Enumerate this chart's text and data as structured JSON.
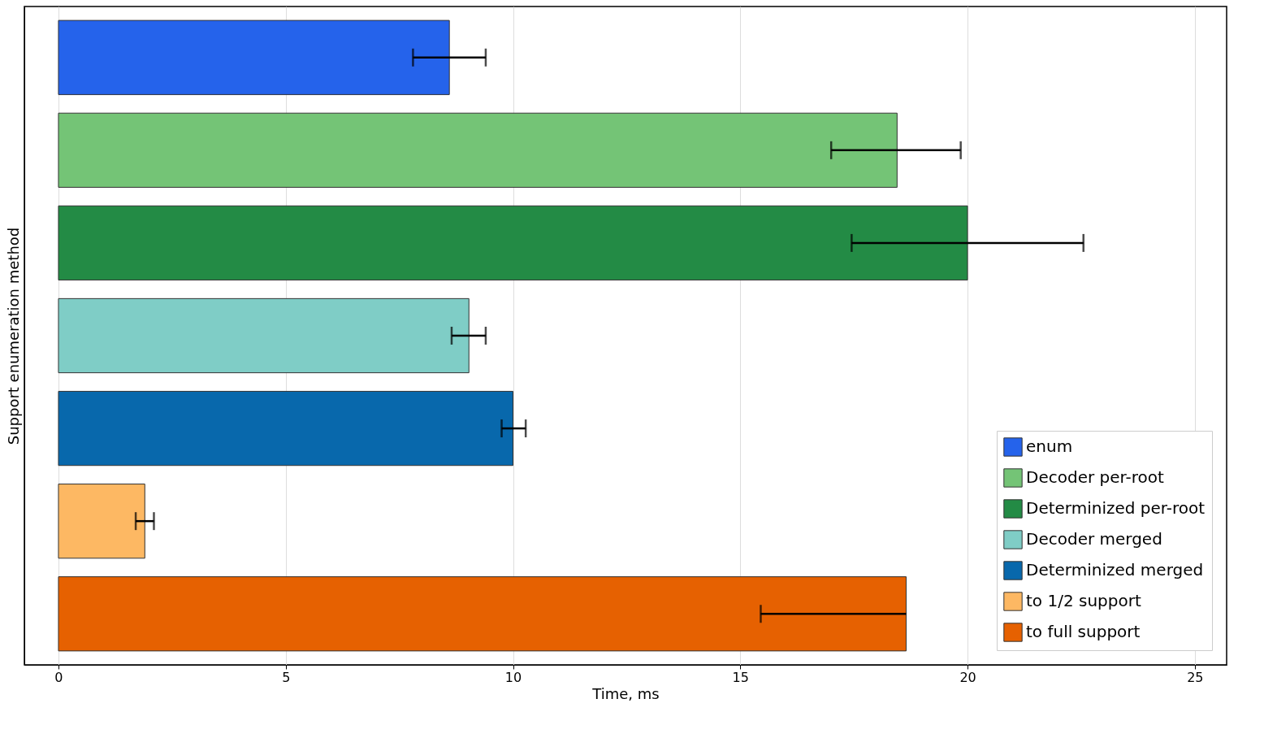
{
  "chart_data": {
    "type": "bar",
    "orientation": "horizontal",
    "xlabel": "Time, ms",
    "ylabel": "Support enumeration method",
    "categories": [
      null,
      null,
      null,
      null,
      null,
      null,
      null
    ],
    "series": [
      {
        "name": "enum",
        "color": "#2563eb",
        "values": [
          8.6,
          null,
          null,
          null,
          null,
          null,
          null
        ],
        "errors": [
          0.8,
          null,
          null,
          null,
          null,
          null,
          null
        ]
      },
      {
        "name": "Decoder per-root",
        "color": "#74c476",
        "values": [
          null,
          18.45,
          null,
          null,
          null,
          null,
          null
        ],
        "errors": [
          null,
          [
            17.0,
            19.85
          ],
          null,
          null,
          null,
          null,
          null
        ]
      },
      {
        "name": "Determinized per-root",
        "color": "#238b45",
        "values": [
          null,
          null,
          20.0,
          null,
          null,
          null,
          null
        ],
        "errors": [
          null,
          null,
          [
            17.45,
            22.55
          ],
          null,
          null,
          null,
          null
        ]
      },
      {
        "name": "Decoder merged",
        "color": "#7fcdc6",
        "values": [
          null,
          null,
          null,
          9.03,
          null,
          null,
          null
        ],
        "errors": [
          null,
          null,
          null,
          [
            8.65,
            9.4
          ],
          null,
          null,
          null
        ]
      },
      {
        "name": "Determinized merged",
        "color": "#0868ac",
        "values": [
          null,
          null,
          null,
          null,
          10.0,
          null,
          null
        ],
        "errors": [
          null,
          null,
          null,
          null,
          [
            9.75,
            10.28
          ],
          null,
          null
        ]
      },
      {
        "name": "to 1/2 support",
        "color": "#fdb863",
        "values": [
          null,
          null,
          null,
          null,
          null,
          1.9,
          null
        ],
        "errors": [
          null,
          null,
          null,
          null,
          null,
          [
            1.7,
            2.1
          ],
          null
        ]
      },
      {
        "name": "to full support",
        "color": "#e66101",
        "values": [
          null,
          null,
          null,
          null,
          null,
          null,
          18.65
        ],
        "errors": [
          null,
          null,
          null,
          null,
          null,
          null,
          [
            15.45,
            18.65
          ]
        ]
      }
    ],
    "xlim": [
      -0.75,
      25.7
    ],
    "xticks": [
      0,
      5,
      10,
      15,
      20,
      25
    ],
    "grid": "x",
    "legend": "bottom right",
    "tick_labels": "x"
  }
}
